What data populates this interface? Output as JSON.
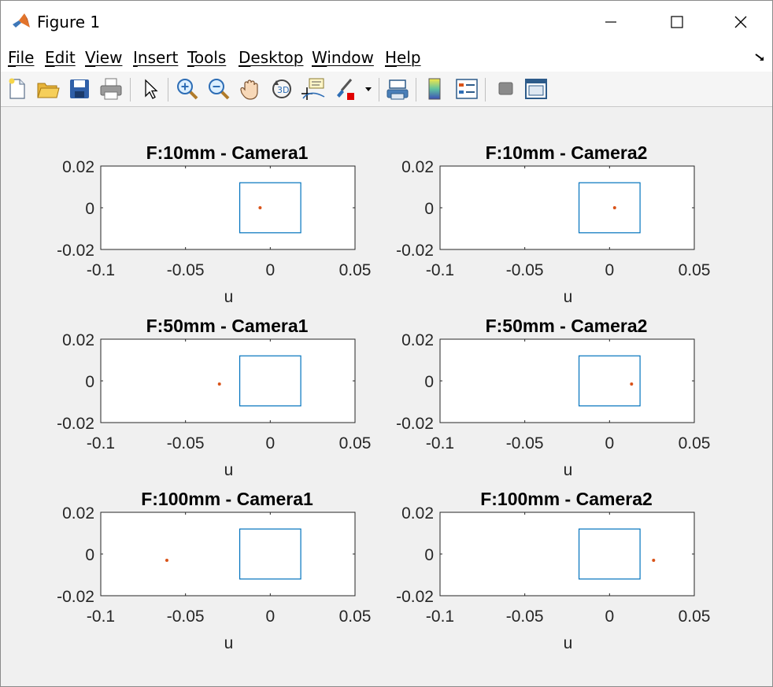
{
  "window": {
    "title": "Figure 1"
  },
  "menu": {
    "items": [
      "File",
      "Edit",
      "View",
      "Insert",
      "Tools",
      "Desktop",
      "Window",
      "Help"
    ]
  },
  "toolbar": {
    "icons": [
      "new-figure-icon",
      "open-file-icon",
      "save-icon",
      "print-icon",
      "pointer-icon",
      "zoom-in-icon",
      "zoom-out-icon",
      "pan-hand-icon",
      "rotate-3d-icon",
      "data-cursor-icon",
      "brush-icon",
      "link-plot-icon",
      "colorbar-icon",
      "legend-icon",
      "hide-plot-tools-icon",
      "show-plot-tools-icon"
    ]
  },
  "colors": {
    "rectangle": "#0072bd",
    "point": "#d95319",
    "figure_bg": "#f0f0f0"
  },
  "chart_data": [
    {
      "type": "scatter",
      "title": "F:10mm - Camera1",
      "xlabel": "u",
      "ylabel": "",
      "xlim": [
        -0.1,
        0.05
      ],
      "ylim": [
        -0.02,
        0.02
      ],
      "xticks": [
        "-0.1",
        "-0.05",
        "0",
        "0.05"
      ],
      "yticks": [
        "0.02",
        "0",
        "-0.02"
      ],
      "rectangle": {
        "x": [
          -0.018,
          0.018
        ],
        "y": [
          -0.012,
          0.012
        ]
      },
      "points": [
        {
          "x": -0.006,
          "y": 0.0
        }
      ]
    },
    {
      "type": "scatter",
      "title": "F:10mm - Camera2",
      "xlabel": "u",
      "ylabel": "",
      "xlim": [
        -0.1,
        0.05
      ],
      "ylim": [
        -0.02,
        0.02
      ],
      "xticks": [
        "-0.1",
        "-0.05",
        "0",
        "0.05"
      ],
      "yticks": [
        "0.02",
        "0",
        "-0.02"
      ],
      "rectangle": {
        "x": [
          -0.018,
          0.018
        ],
        "y": [
          -0.012,
          0.012
        ]
      },
      "points": [
        {
          "x": 0.003,
          "y": 0.0
        }
      ]
    },
    {
      "type": "scatter",
      "title": "F:50mm - Camera1",
      "xlabel": "u",
      "ylabel": "",
      "xlim": [
        -0.1,
        0.05
      ],
      "ylim": [
        -0.02,
        0.02
      ],
      "xticks": [
        "-0.1",
        "-0.05",
        "0",
        "0.05"
      ],
      "yticks": [
        "0.02",
        "0",
        "-0.02"
      ],
      "rectangle": {
        "x": [
          -0.018,
          0.018
        ],
        "y": [
          -0.012,
          0.012
        ]
      },
      "points": [
        {
          "x": -0.03,
          "y": -0.0015
        }
      ]
    },
    {
      "type": "scatter",
      "title": "F:50mm - Camera2",
      "xlabel": "u",
      "ylabel": "",
      "xlim": [
        -0.1,
        0.05
      ],
      "ylim": [
        -0.02,
        0.02
      ],
      "xticks": [
        "-0.1",
        "-0.05",
        "0",
        "0.05"
      ],
      "yticks": [
        "0.02",
        "0",
        "-0.02"
      ],
      "rectangle": {
        "x": [
          -0.018,
          0.018
        ],
        "y": [
          -0.012,
          0.012
        ]
      },
      "points": [
        {
          "x": 0.013,
          "y": -0.0015
        }
      ]
    },
    {
      "type": "scatter",
      "title": "F:100mm - Camera1",
      "xlabel": "u",
      "ylabel": "",
      "xlim": [
        -0.1,
        0.05
      ],
      "ylim": [
        -0.02,
        0.02
      ],
      "xticks": [
        "-0.1",
        "-0.05",
        "0",
        "0.05"
      ],
      "yticks": [
        "0.02",
        "0",
        "-0.02"
      ],
      "rectangle": {
        "x": [
          -0.018,
          0.018
        ],
        "y": [
          -0.012,
          0.012
        ]
      },
      "points": [
        {
          "x": -0.061,
          "y": -0.003
        }
      ]
    },
    {
      "type": "scatter",
      "title": "F:100mm - Camera2",
      "xlabel": "u",
      "ylabel": "",
      "xlim": [
        -0.1,
        0.05
      ],
      "ylim": [
        -0.02,
        0.02
      ],
      "xticks": [
        "-0.1",
        "-0.05",
        "0",
        "0.05"
      ],
      "yticks": [
        "0.02",
        "0",
        "-0.02"
      ],
      "rectangle": {
        "x": [
          -0.018,
          0.018
        ],
        "y": [
          -0.012,
          0.012
        ]
      },
      "points": [
        {
          "x": 0.026,
          "y": -0.003
        }
      ]
    }
  ]
}
